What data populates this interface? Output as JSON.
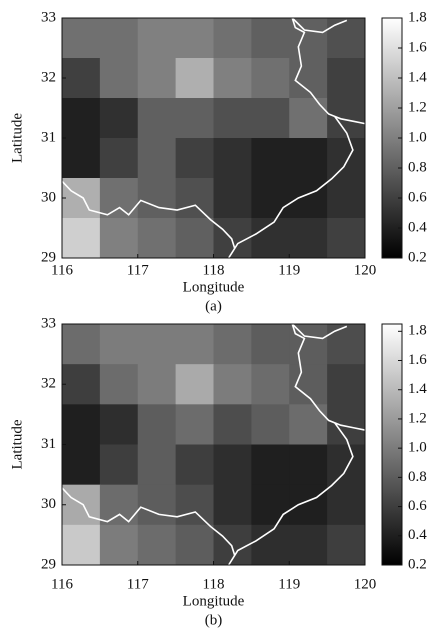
{
  "chart_data": [
    {
      "type": "heatmap",
      "xlabel": "Longitude",
      "ylabel": "Latitude",
      "caption": "(a)",
      "xlim": [
        116,
        120
      ],
      "ylim": [
        29,
        33
      ],
      "xticks": [
        116,
        117,
        118,
        119,
        120
      ],
      "yticks": [
        29,
        30,
        31,
        32,
        33
      ],
      "colormap": "gray",
      "clim": [
        0.2,
        1.8
      ],
      "cticks": [
        0.2,
        0.4,
        0.6,
        0.8,
        {
          "value": 1,
          "label": "1.0"
        },
        1.2,
        1.4,
        1.6,
        1.8
      ],
      "z": [
        [
          0.9,
          0.9,
          1.0,
          1.0,
          0.9,
          0.8,
          0.8,
          0.7
        ],
        [
          0.6,
          0.9,
          1.0,
          1.3,
          1.0,
          0.9,
          0.8,
          0.6
        ],
        [
          0.4,
          0.5,
          0.8,
          0.8,
          0.7,
          0.7,
          0.9,
          0.6
        ],
        [
          0.4,
          0.6,
          0.8,
          0.6,
          0.5,
          0.4,
          0.4,
          0.5
        ],
        [
          1.3,
          0.9,
          0.8,
          0.7,
          0.5,
          0.4,
          0.4,
          0.5
        ],
        [
          1.5,
          1.0,
          0.9,
          0.8,
          0.6,
          0.5,
          0.5,
          0.6
        ]
      ]
    },
    {
      "type": "heatmap",
      "xlabel": "Longitude",
      "ylabel": "Latitude",
      "caption": "(b)",
      "xlim": [
        116,
        120
      ],
      "ylim": [
        29,
        33
      ],
      "xticks": [
        116,
        117,
        118,
        119,
        120
      ],
      "yticks": [
        29,
        30,
        31,
        32,
        33
      ],
      "colormap": "gray",
      "clim": [
        0.2,
        1.85
      ],
      "cticks": [
        0.2,
        0.4,
        0.6,
        0.8,
        {
          "value": 1,
          "label": "1.0"
        },
        1.2,
        1.4,
        1.6,
        1.8
      ],
      "z": [
        [
          0.9,
          1.0,
          1.0,
          1.0,
          0.9,
          0.8,
          0.8,
          0.7
        ],
        [
          0.6,
          0.9,
          1.0,
          1.3,
          1.0,
          0.9,
          0.8,
          0.6
        ],
        [
          0.4,
          0.5,
          0.8,
          0.9,
          0.7,
          0.8,
          0.9,
          0.6
        ],
        [
          0.4,
          0.6,
          0.8,
          0.6,
          0.5,
          0.4,
          0.4,
          0.5
        ],
        [
          1.3,
          0.9,
          0.8,
          0.7,
          0.5,
          0.4,
          0.4,
          0.5
        ],
        [
          1.5,
          1.0,
          0.9,
          0.8,
          0.6,
          0.5,
          0.5,
          0.6
        ]
      ]
    }
  ]
}
